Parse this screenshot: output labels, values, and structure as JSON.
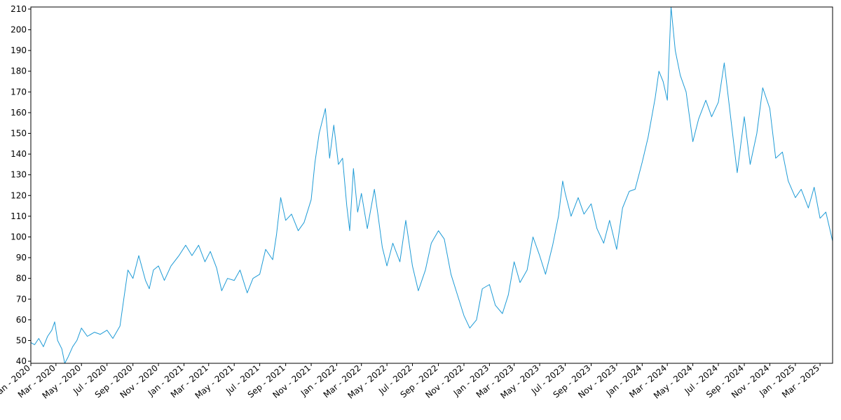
{
  "chart_data": {
    "type": "line",
    "title": "",
    "xlabel": "",
    "ylabel": "",
    "xlim": [
      "2020-01-01",
      "2025-03-31"
    ],
    "ylim": [
      39,
      211
    ],
    "grid": false,
    "legend": "none",
    "line_color": "#1f9bd6",
    "x_ticks": [
      {
        "date": "2020-01-01",
        "label": "Jan - 2020"
      },
      {
        "date": "2020-03-01",
        "label": "Mar - 2020"
      },
      {
        "date": "2020-05-01",
        "label": "May - 2020"
      },
      {
        "date": "2020-07-01",
        "label": "Jul - 2020"
      },
      {
        "date": "2020-09-01",
        "label": "Sep - 2020"
      },
      {
        "date": "2020-11-01",
        "label": "Nov - 2020"
      },
      {
        "date": "2021-01-01",
        "label": "Jan - 2021"
      },
      {
        "date": "2021-03-01",
        "label": "Mar - 2021"
      },
      {
        "date": "2021-05-01",
        "label": "May - 2021"
      },
      {
        "date": "2021-07-01",
        "label": "Jul - 2021"
      },
      {
        "date": "2021-09-01",
        "label": "Sep - 2021"
      },
      {
        "date": "2021-11-01",
        "label": "Nov - 2021"
      },
      {
        "date": "2022-01-01",
        "label": "Jan - 2022"
      },
      {
        "date": "2022-03-01",
        "label": "Mar - 2022"
      },
      {
        "date": "2022-05-01",
        "label": "May - 2022"
      },
      {
        "date": "2022-07-01",
        "label": "Jul - 2022"
      },
      {
        "date": "2022-09-01",
        "label": "Sep - 2022"
      },
      {
        "date": "2022-11-01",
        "label": "Nov - 2022"
      },
      {
        "date": "2023-01-01",
        "label": "Jan - 2023"
      },
      {
        "date": "2023-03-01",
        "label": "Mar - 2023"
      },
      {
        "date": "2023-05-01",
        "label": "May - 2023"
      },
      {
        "date": "2023-07-01",
        "label": "Jul - 2023"
      },
      {
        "date": "2023-09-01",
        "label": "Sep - 2023"
      },
      {
        "date": "2023-11-01",
        "label": "Nov - 2023"
      },
      {
        "date": "2024-01-01",
        "label": "Jan - 2024"
      },
      {
        "date": "2024-03-01",
        "label": "Mar - 2024"
      },
      {
        "date": "2024-05-01",
        "label": "May - 2024"
      },
      {
        "date": "2024-07-01",
        "label": "Jul - 2024"
      },
      {
        "date": "2024-09-01",
        "label": "Sep - 2024"
      },
      {
        "date": "2024-11-01",
        "label": "Nov - 2024"
      },
      {
        "date": "2025-01-01",
        "label": "Jan - 2025"
      },
      {
        "date": "2025-03-01",
        "label": "Mar - 2025"
      }
    ],
    "y_ticks": [
      40,
      50,
      60,
      70,
      80,
      90,
      100,
      110,
      120,
      130,
      140,
      150,
      160,
      170,
      180,
      190,
      200,
      210
    ],
    "series": [
      {
        "points": [
          [
            "2020-01-01",
            49
          ],
          [
            "2020-01-10",
            48
          ],
          [
            "2020-01-20",
            51
          ],
          [
            "2020-01-31",
            47
          ],
          [
            "2020-02-10",
            52
          ],
          [
            "2020-02-20",
            55
          ],
          [
            "2020-02-27",
            59
          ],
          [
            "2020-03-05",
            50
          ],
          [
            "2020-03-15",
            46
          ],
          [
            "2020-03-22",
            39
          ],
          [
            "2020-03-30",
            42
          ],
          [
            "2020-04-10",
            47
          ],
          [
            "2020-04-20",
            50
          ],
          [
            "2020-05-01",
            56
          ],
          [
            "2020-05-15",
            52
          ],
          [
            "2020-06-01",
            54
          ],
          [
            "2020-06-15",
            53
          ],
          [
            "2020-07-01",
            55
          ],
          [
            "2020-07-15",
            51
          ],
          [
            "2020-08-01",
            57
          ],
          [
            "2020-08-10",
            70
          ],
          [
            "2020-08-20",
            84
          ],
          [
            "2020-09-01",
            80
          ],
          [
            "2020-09-15",
            91
          ],
          [
            "2020-10-01",
            79
          ],
          [
            "2020-10-10",
            75
          ],
          [
            "2020-10-20",
            84
          ],
          [
            "2020-11-01",
            86
          ],
          [
            "2020-11-15",
            79
          ],
          [
            "2020-12-01",
            86
          ],
          [
            "2020-12-20",
            91
          ],
          [
            "2021-01-05",
            96
          ],
          [
            "2021-01-20",
            91
          ],
          [
            "2021-02-05",
            96
          ],
          [
            "2021-02-20",
            88
          ],
          [
            "2021-03-05",
            93
          ],
          [
            "2021-03-20",
            85
          ],
          [
            "2021-04-01",
            74
          ],
          [
            "2021-04-15",
            80
          ],
          [
            "2021-05-01",
            79
          ],
          [
            "2021-05-15",
            84
          ],
          [
            "2021-06-01",
            73
          ],
          [
            "2021-06-15",
            80
          ],
          [
            "2021-07-01",
            82
          ],
          [
            "2021-07-15",
            94
          ],
          [
            "2021-08-01",
            89
          ],
          [
            "2021-08-10",
            101
          ],
          [
            "2021-08-20",
            119
          ],
          [
            "2021-09-01",
            108
          ],
          [
            "2021-09-15",
            111
          ],
          [
            "2021-10-01",
            103
          ],
          [
            "2021-10-15",
            107
          ],
          [
            "2021-11-01",
            118
          ],
          [
            "2021-11-10",
            136
          ],
          [
            "2021-11-20",
            150
          ],
          [
            "2021-12-05",
            162
          ],
          [
            "2021-12-15",
            138
          ],
          [
            "2021-12-25",
            154
          ],
          [
            "2022-01-05",
            135
          ],
          [
            "2022-01-15",
            138
          ],
          [
            "2022-01-25",
            115
          ],
          [
            "2022-02-01",
            103
          ],
          [
            "2022-02-10",
            133
          ],
          [
            "2022-02-20",
            112
          ],
          [
            "2022-03-01",
            121
          ],
          [
            "2022-03-15",
            104
          ],
          [
            "2022-04-01",
            123
          ],
          [
            "2022-04-10",
            110
          ],
          [
            "2022-04-20",
            95
          ],
          [
            "2022-05-01",
            86
          ],
          [
            "2022-05-15",
            97
          ],
          [
            "2022-06-01",
            88
          ],
          [
            "2022-06-15",
            108
          ],
          [
            "2022-07-01",
            86
          ],
          [
            "2022-07-15",
            74
          ],
          [
            "2022-08-01",
            84
          ],
          [
            "2022-08-15",
            97
          ],
          [
            "2022-09-01",
            103
          ],
          [
            "2022-09-15",
            99
          ],
          [
            "2022-10-01",
            82
          ],
          [
            "2022-10-15",
            73
          ],
          [
            "2022-11-01",
            62
          ],
          [
            "2022-11-15",
            56
          ],
          [
            "2022-12-01",
            60
          ],
          [
            "2022-12-15",
            75
          ],
          [
            "2023-01-01",
            77
          ],
          [
            "2023-01-15",
            67
          ],
          [
            "2023-02-01",
            63
          ],
          [
            "2023-02-15",
            72
          ],
          [
            "2023-03-01",
            88
          ],
          [
            "2023-03-15",
            78
          ],
          [
            "2023-04-01",
            84
          ],
          [
            "2023-04-15",
            100
          ],
          [
            "2023-05-01",
            91
          ],
          [
            "2023-05-15",
            82
          ],
          [
            "2023-06-01",
            96
          ],
          [
            "2023-06-15",
            110
          ],
          [
            "2023-06-25",
            127
          ],
          [
            "2023-07-01",
            121
          ],
          [
            "2023-07-15",
            110
          ],
          [
            "2023-08-01",
            119
          ],
          [
            "2023-08-15",
            111
          ],
          [
            "2023-09-01",
            116
          ],
          [
            "2023-09-15",
            104
          ],
          [
            "2023-10-01",
            97
          ],
          [
            "2023-10-15",
            108
          ],
          [
            "2023-11-01",
            94
          ],
          [
            "2023-11-15",
            114
          ],
          [
            "2023-12-01",
            122
          ],
          [
            "2023-12-15",
            123
          ],
          [
            "2024-01-01",
            136
          ],
          [
            "2024-01-15",
            148
          ],
          [
            "2024-02-01",
            167
          ],
          [
            "2024-02-10",
            180
          ],
          [
            "2024-02-20",
            175
          ],
          [
            "2024-03-01",
            166
          ],
          [
            "2024-03-10",
            211
          ],
          [
            "2024-03-20",
            190
          ],
          [
            "2024-04-01",
            178
          ],
          [
            "2024-04-15",
            170
          ],
          [
            "2024-05-01",
            146
          ],
          [
            "2024-05-15",
            157
          ],
          [
            "2024-06-01",
            166
          ],
          [
            "2024-06-15",
            158
          ],
          [
            "2024-07-01",
            165
          ],
          [
            "2024-07-15",
            184
          ],
          [
            "2024-08-01",
            155
          ],
          [
            "2024-08-15",
            131
          ],
          [
            "2024-09-01",
            158
          ],
          [
            "2024-09-15",
            135
          ],
          [
            "2024-10-01",
            150
          ],
          [
            "2024-10-15",
            172
          ],
          [
            "2024-11-01",
            162
          ],
          [
            "2024-11-15",
            138
          ],
          [
            "2024-12-01",
            141
          ],
          [
            "2024-12-15",
            127
          ],
          [
            "2025-01-01",
            119
          ],
          [
            "2025-01-15",
            123
          ],
          [
            "2025-02-01",
            114
          ],
          [
            "2025-02-15",
            124
          ],
          [
            "2025-03-01",
            109
          ],
          [
            "2025-03-15",
            112
          ],
          [
            "2025-03-31",
            98
          ]
        ]
      }
    ]
  }
}
